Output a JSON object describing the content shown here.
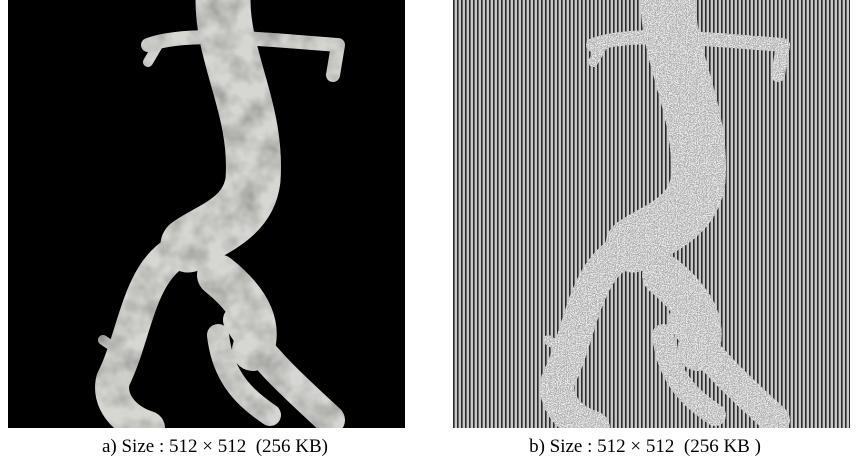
{
  "figure": {
    "panels": [
      {
        "caption": "a) Size : 512 × 512  (256 KB)"
      },
      {
        "caption": "b) Size : 512 × 512  (256 KB )"
      }
    ]
  }
}
